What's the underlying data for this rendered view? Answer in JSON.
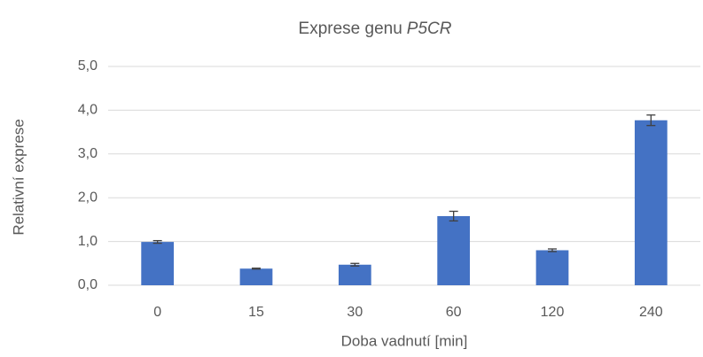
{
  "chart_data": {
    "type": "bar",
    "title": {
      "text": "Exprese genu",
      "italic_text": "P5CR"
    },
    "x_label": "Doba vadnutí [min]",
    "y_label": "Relativní exprese",
    "categories": [
      "0",
      "15",
      "30",
      "60",
      "120",
      "240"
    ],
    "values": [
      0.99,
      0.38,
      0.47,
      1.58,
      0.8,
      3.77
    ],
    "errors": [
      0.03,
      0.01,
      0.03,
      0.11,
      0.03,
      0.12
    ],
    "color": "#4472c4",
    "error_color": "#404040",
    "ylim": [
      0,
      5
    ],
    "yticks": [
      {
        "value": 0,
        "label": "0,0"
      },
      {
        "value": 1,
        "label": "1,0"
      },
      {
        "value": 2,
        "label": "2,0"
      },
      {
        "value": 3,
        "label": "3,0"
      },
      {
        "value": 4,
        "label": "4,0"
      },
      {
        "value": 5,
        "label": "5,0"
      }
    ],
    "grid": true
  }
}
